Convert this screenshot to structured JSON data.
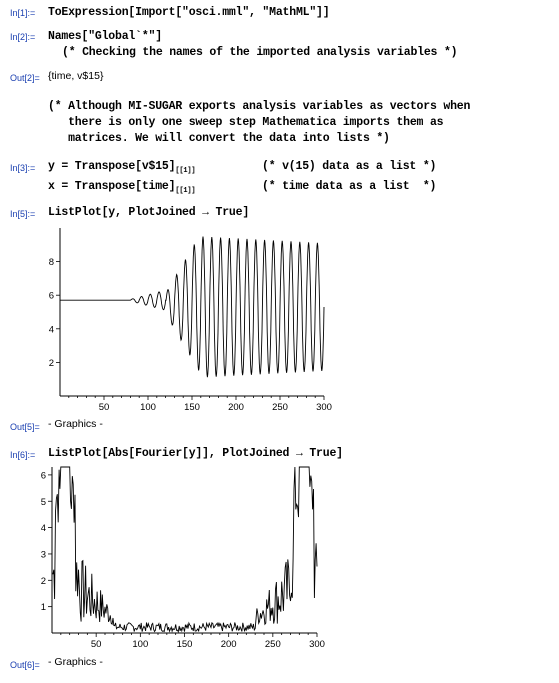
{
  "cells": [
    {
      "label": "In[1]:=",
      "lines": [
        "ToExpression[Import[\"osci.mml\", \"MathML\"]]"
      ]
    },
    {
      "label": "In[2]:=",
      "lines": [
        "Names[\"Global`*\"]",
        "(* Checking the names of the imported analysis variables *)"
      ]
    },
    {
      "label": "Out[2]=",
      "text": "{time, v$15}"
    },
    {
      "comment_lines": [
        "(* Although MI-SUGAR exports analysis variables as vectors when",
        "   there is only one sweep step Mathematica imports them as",
        "   matrices. We will convert the data into lists *)"
      ]
    },
    {
      "label": "In[3]:=",
      "line1_code": "y = Transpose[v$15]",
      "line1_sub": "[[1]]",
      "line1_comment": "(* v(15) data as a list *)",
      "line2_code": "x = Transpose[time]",
      "line2_sub": "[[1]]",
      "line2_comment": "(* time data as a list  *)"
    },
    {
      "label": "In[5]:=",
      "lines": [
        "ListPlot[y, PlotJoined → True]"
      ]
    },
    {
      "label": "Out[5]=",
      "text": "- Graphics -"
    },
    {
      "label": "In[6]:=",
      "lines": [
        "ListPlot[Abs[Fourier[y]], PlotJoined → True]"
      ]
    },
    {
      "label": "Out[6]=",
      "text": "- Graphics -"
    }
  ],
  "chart_data": [
    {
      "type": "line",
      "title": "",
      "xlabel": "",
      "ylabel": "",
      "xlim": [
        0,
        300
      ],
      "ylim": [
        0,
        10
      ],
      "xticks": [
        "50",
        "100",
        "150",
        "200",
        "250",
        "300"
      ],
      "yticks": [
        "2",
        "4",
        "6",
        "8"
      ],
      "series": [
        {
          "description_free": true,
          "segments": [
            {
              "x_start": 0,
              "x_end": 80,
              "value": 5.7
            },
            {
              "x_start": 80,
              "x_end": 120,
              "oscillation_center": 5.7,
              "amplitude_start": 0.05,
              "amplitude_end": 0.6
            },
            {
              "x_start": 120,
              "x_end": 160,
              "oscillation_center": 5.5,
              "amplitude_start": 0.6,
              "amplitude_end": 4.2
            },
            {
              "x_start": 160,
              "x_end": 300,
              "oscillation_center": 5.3,
              "amplitude_start": 4.2,
              "amplitude_end": 3.8
            }
          ],
          "period": 10,
          "min_value": 1.0,
          "max_value": 9.6
        }
      ]
    },
    {
      "type": "line",
      "title": "",
      "xlabel": "",
      "ylabel": "",
      "xlim": [
        0,
        300
      ],
      "ylim": [
        0,
        6.3
      ],
      "xticks": [
        "50",
        "100",
        "150",
        "200",
        "250",
        "300"
      ],
      "yticks": [
        "1",
        "2",
        "3",
        "4",
        "5",
        "6"
      ],
      "series": [
        {
          "peaks": [
            {
              "x": 15,
              "value": 6.3
            },
            {
              "x": 285,
              "value": 6.3
            }
          ],
          "low_band": {
            "x_start": 70,
            "x_end": 230,
            "value_range": [
              0.05,
              0.4
            ]
          },
          "near_peak_noise": [
            1.0,
            3.0
          ]
        }
      ]
    }
  ]
}
